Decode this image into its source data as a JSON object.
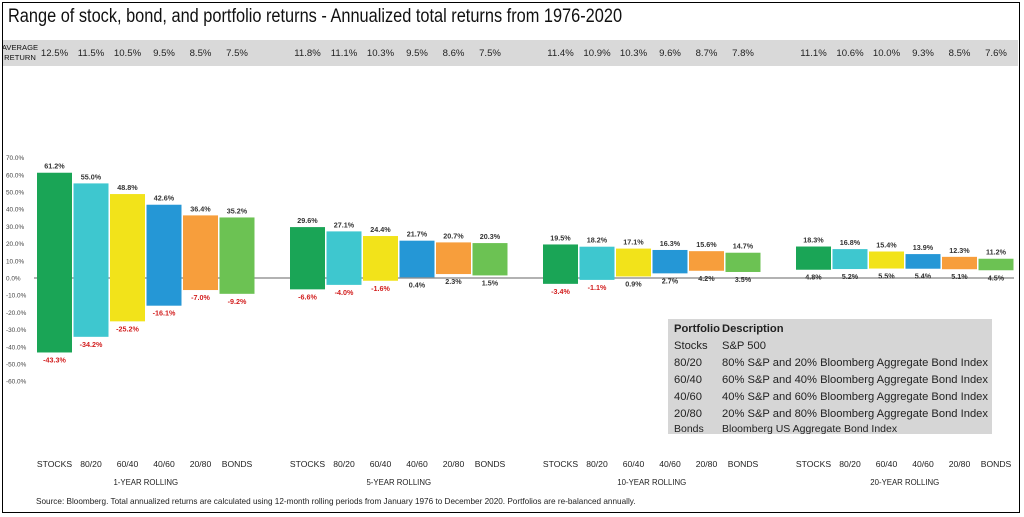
{
  "title": "Range of stock, bond, and portfolio returns - Annualized total returns from 1976-2020",
  "average_return_label": [
    "AVERAGE",
    "RETURN"
  ],
  "source_note": "Source: Bloomberg. Total annualized returns are calculated using 12-month rolling periods from January 1976 to December 2020. Portfolios are re-balanced annually.",
  "legend": {
    "header": {
      "portfolio": "Portfolio",
      "description": "Description"
    },
    "rows": [
      {
        "portfolio": "Stocks",
        "description": "S&P 500"
      },
      {
        "portfolio": "80/20",
        "description": "80% S&P and 20% Bloomberg Aggregate Bond Index"
      },
      {
        "portfolio": "60/40",
        "description": "60% S&P and 40% Bloomberg Aggregate Bond Index"
      },
      {
        "portfolio": "40/60",
        "description": "40% S&P and 60% Bloomberg Aggregate Bond Index"
      },
      {
        "portfolio": "20/80",
        "description": "20% S&P and 80% Bloomberg Aggregate Bond Index"
      },
      {
        "portfolio": "Bonds",
        "description": "Bloomberg US Aggregate Bond Index"
      }
    ]
  },
  "colors": {
    "STOCKS": "#1aa556",
    "80/20": "#3ec7cf",
    "60/40": "#f2e31a",
    "40/60": "#2597d6",
    "20/80": "#f79e3c",
    "BONDS": "#6cc253",
    "negative_label": "#d21e1e"
  },
  "chart_data": {
    "type": "bar",
    "subtype": "floating-range",
    "portfolios": [
      "STOCKS",
      "80/20",
      "60/40",
      "40/60",
      "20/80",
      "BONDS"
    ],
    "ylim": [
      -60,
      70
    ],
    "yticks": [
      "70.0%",
      "60.0%",
      "50.0%",
      "40.0%",
      "30.0%",
      "20.0%",
      "10.0%",
      "0.0%",
      "-10.0%",
      "-20.0%",
      "-30.0%",
      "-40.0%",
      "-50.0%",
      "-60.0%"
    ],
    "groups": [
      {
        "name": "1-YEAR ROLLING",
        "average": [
          "12.5%",
          "11.5%",
          "10.5%",
          "9.5%",
          "8.5%",
          "7.5%"
        ],
        "high": [
          61.2,
          55.0,
          48.8,
          42.6,
          36.4,
          35.2
        ],
        "low": [
          -43.3,
          -34.2,
          -25.2,
          -16.1,
          -7.0,
          -9.2
        ],
        "high_labels": [
          "61.2%",
          "55.0%",
          "48.8%",
          "42.6%",
          "36.4%",
          "35.2%"
        ],
        "low_labels": [
          "-43.3%",
          "-34.2%",
          "-25.2%",
          "-16.1%",
          "-7.0%",
          "-9.2%"
        ]
      },
      {
        "name": "5-YEAR ROLLING",
        "average": [
          "11.8%",
          "11.1%",
          "10.3%",
          "9.5%",
          "8.6%",
          "7.5%"
        ],
        "high": [
          29.6,
          27.1,
          24.4,
          21.7,
          20.7,
          20.3
        ],
        "low": [
          -6.6,
          -4.0,
          -1.6,
          0.4,
          2.3,
          1.5
        ],
        "high_labels": [
          "29.6%",
          "27.1%",
          "24.4%",
          "21.7%",
          "20.7%",
          "20.3%"
        ],
        "low_labels": [
          "-6.6%",
          "-4.0%",
          "-1.6%",
          "0.4%",
          "2.3%",
          "1.5%"
        ]
      },
      {
        "name": "10-YEAR ROLLING",
        "average": [
          "11.4%",
          "10.9%",
          "10.3%",
          "9.6%",
          "8.7%",
          "7.8%"
        ],
        "high": [
          19.5,
          18.2,
          17.1,
          16.3,
          15.6,
          14.7
        ],
        "low": [
          -3.4,
          -1.1,
          0.9,
          2.7,
          4.2,
          3.5
        ],
        "high_labels": [
          "19.5%",
          "18.2%",
          "17.1%",
          "16.3%",
          "15.6%",
          "14.7%"
        ],
        "low_labels": [
          "-3.4%",
          "-1.1%",
          "0.9%",
          "2.7%",
          "4.2%",
          "3.5%"
        ]
      },
      {
        "name": "20-YEAR ROLLING",
        "average": [
          "11.1%",
          "10.6%",
          "10.0%",
          "9.3%",
          "8.5%",
          "7.6%"
        ],
        "high": [
          18.3,
          16.8,
          15.4,
          13.9,
          12.3,
          11.2
        ],
        "low": [
          4.8,
          5.2,
          5.5,
          5.4,
          5.1,
          4.5
        ],
        "high_labels": [
          "18.3%",
          "16.8%",
          "15.4%",
          "13.9%",
          "12.3%",
          "11.2%"
        ],
        "low_labels": [
          "4.8%",
          "5.2%",
          "5.5%",
          "5.4%",
          "5.1%",
          "4.5%"
        ]
      }
    ]
  }
}
